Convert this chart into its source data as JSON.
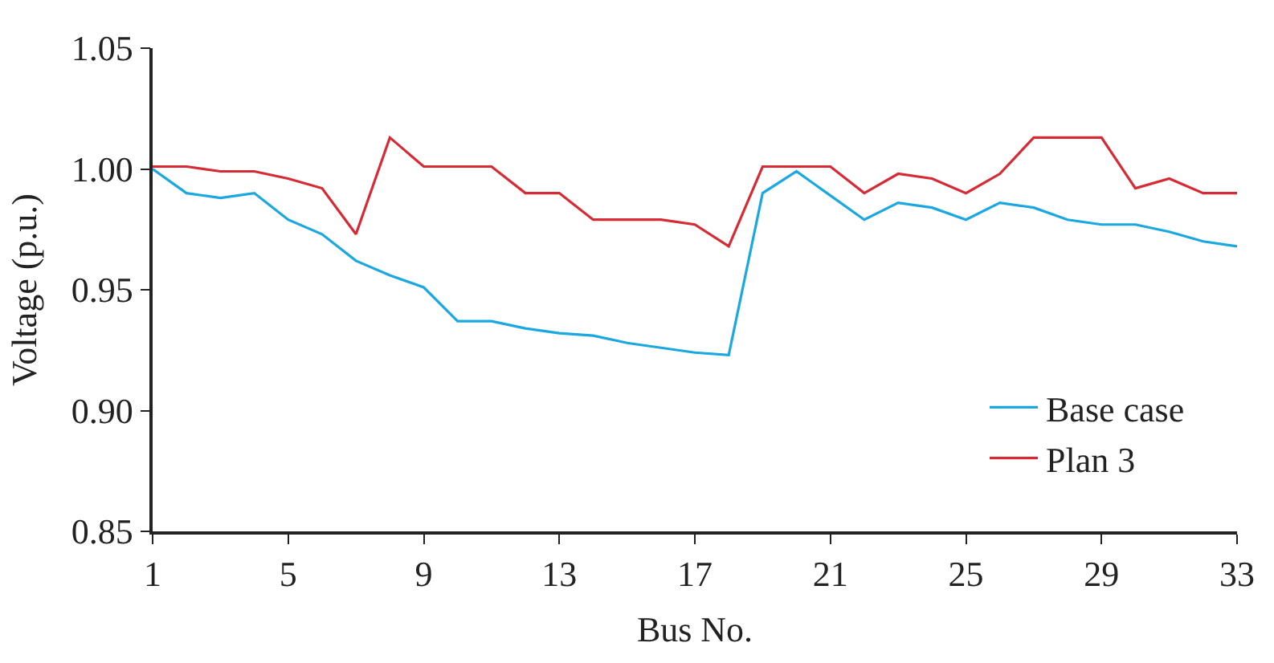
{
  "chart_data": {
    "type": "line",
    "xlabel": "Bus No.",
    "ylabel": "Voltage (p.u.)",
    "x": [
      1,
      2,
      3,
      4,
      5,
      6,
      7,
      8,
      9,
      10,
      11,
      12,
      13,
      14,
      15,
      16,
      17,
      18,
      19,
      20,
      21,
      22,
      23,
      24,
      25,
      26,
      27,
      28,
      29,
      30,
      31,
      32,
      33
    ],
    "series": [
      {
        "name": "Base case",
        "color": "#1ba7e0",
        "values": [
          1.0,
          0.99,
          0.988,
          0.99,
          0.979,
          0.973,
          0.962,
          0.956,
          0.951,
          0.937,
          0.937,
          0.934,
          0.932,
          0.931,
          0.928,
          0.926,
          0.924,
          0.923,
          0.99,
          0.999,
          0.989,
          0.979,
          0.986,
          0.984,
          0.979,
          0.986,
          0.984,
          0.979,
          0.977,
          0.977,
          0.974,
          0.97,
          0.968
        ]
      },
      {
        "name": "Plan 3",
        "color": "#d62b35",
        "values": [
          1.001,
          1.001,
          0.999,
          0.999,
          0.996,
          0.992,
          0.973,
          1.013,
          1.001,
          1.001,
          1.001,
          0.99,
          0.99,
          0.979,
          0.979,
          0.979,
          0.977,
          0.968,
          1.001,
          1.001,
          1.001,
          0.99,
          0.998,
          0.996,
          0.99,
          0.998,
          1.013,
          1.013,
          1.013,
          0.992,
          0.996,
          0.99,
          0.99
        ]
      }
    ],
    "xlim": [
      1,
      33
    ],
    "xticks": [
      1,
      5,
      9,
      13,
      17,
      21,
      25,
      29,
      33
    ],
    "ylim": [
      0.85,
      1.05
    ],
    "yticks": [
      {
        "value": 0.85,
        "label": "0.85"
      },
      {
        "value": 0.9,
        "label": "0.90"
      },
      {
        "value": 0.95,
        "label": "0.95"
      },
      {
        "value": 1.0,
        "label": "1.00"
      },
      {
        "value": 1.05,
        "label": "1.05"
      }
    ],
    "legend": "bottom right",
    "marker": "none",
    "line_style": "solid"
  }
}
